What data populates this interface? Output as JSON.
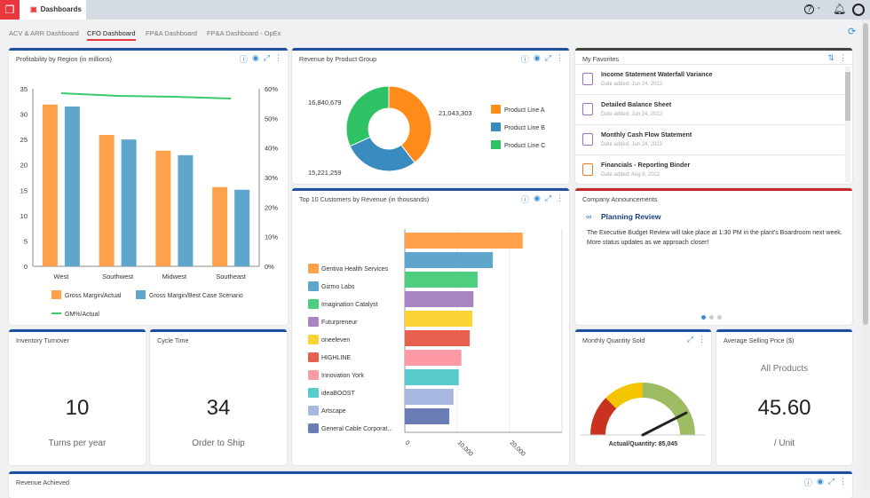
{
  "app": {
    "tab_label": "Dashboards",
    "help": "?",
    "help_caret": "⌄"
  },
  "subtabs": [
    "ACV & ARR Dashboard",
    "CFO Dashboard",
    "FP&A Dashboard",
    "FP&A Dashboard - OpEx"
  ],
  "panels": {
    "profit": {
      "title": "Profitability by Region (in millions)"
    },
    "revenue_group": {
      "title": "Revenue by Product Group"
    },
    "favorites": {
      "title": "My Favorites",
      "items": [
        {
          "title": "Income Statement Waterfall Variance",
          "date": "Date added: Jun 24, 2022"
        },
        {
          "title": "Detailed Balance Sheet",
          "date": "Date added: Jun 24, 2022"
        },
        {
          "title": "Monthly Cash Flow Statement",
          "date": "Date added: Jun 24, 2022"
        },
        {
          "title": "Financials - Reporting Binder",
          "date": "Date added: Aug 8, 2022"
        }
      ]
    },
    "top10": {
      "title": "Top 10 Customers by Revenue (in thousands)"
    },
    "announcements": {
      "title": "Company Announcements",
      "heading": "Planning Review",
      "body": "The Executive Budget Review will take place at 1:30 PM in the plant's Boardroom next week. More status updates as we approach closer!"
    },
    "inventory": {
      "title": "Inventory Turnover",
      "value": "10",
      "unit": "Turns per year"
    },
    "cycle": {
      "title": "Cycle Time",
      "value": "34",
      "unit": "Order to Ship"
    },
    "monthly": {
      "title": "Monthly Quantity Sold",
      "label": "Actual/Quantity: 85,045",
      "gauge_fraction": 0.85
    },
    "asp": {
      "title": "Average Selling Price ($)",
      "subtitle": "All Products",
      "value": "45.60",
      "unit": "/ Unit"
    },
    "revenue_achieved": {
      "title": "Revenue Achieved"
    }
  },
  "chart_data": [
    {
      "type": "bar",
      "title": "Profitability by Region (in millions)",
      "categories": [
        "West",
        "Southwest",
        "Midwest",
        "Southeast"
      ],
      "series": [
        {
          "name": "Gross Margin/Actual",
          "color": "#ffa04a",
          "values": [
            31.9,
            25.9,
            22.8,
            15.6
          ]
        },
        {
          "name": "Gross Margin/Best Case Scenario",
          "color": "#5fa6cc",
          "values": [
            31.5,
            25.0,
            21.9,
            15.1
          ]
        },
        {
          "name": "GM%/Actual",
          "type": "line",
          "axis": "right",
          "color": "#3cc96e",
          "values": [
            58.5,
            57.6,
            57.3,
            56.7
          ]
        }
      ],
      "ylim": [
        0,
        35
      ],
      "yticks": [
        "0",
        "5",
        "10",
        "15",
        "20",
        "25",
        "30",
        "35"
      ],
      "y2lim": [
        0,
        60
      ],
      "y2ticks": [
        "0%",
        "10%",
        "20%",
        "30%",
        "40%",
        "50%",
        "60%"
      ]
    },
    {
      "type": "pie",
      "title": "Revenue by Product Group",
      "labels": [
        "Product Line A",
        "Product Line B",
        "Product Line C"
      ],
      "values": [
        21043303,
        15221259,
        16840679
      ],
      "value_labels": [
        "21,043,303",
        "15,221,259",
        "16,840,679"
      ],
      "colors": [
        "#ff8c1a",
        "#3a8cc0",
        "#2ec265"
      ]
    },
    {
      "type": "bar",
      "orientation": "horizontal",
      "title": "Top 10 Customers by Revenue (in thousands)",
      "categories": [
        "Gentiva Health Services",
        "Gizmo Labs",
        "Imagination Catalyst",
        "Futurpreneur",
        "oneeleven",
        "HIGHLINE",
        "Innovation York",
        "ideaBOOST",
        "Artscape",
        "General Cable Corporat..."
      ],
      "values": [
        22500,
        16800,
        13900,
        13100,
        12900,
        12400,
        10800,
        10300,
        9300,
        8500
      ],
      "colors": [
        "#ffa04a",
        "#5fa6cc",
        "#4dcf7f",
        "#a884c0",
        "#fbd334",
        "#e8604f",
        "#ff99a5",
        "#58cccc",
        "#a9b8e0",
        "#6b7db5"
      ],
      "xlim": [
        0,
        30000
      ],
      "xticks": [
        "0",
        "10,000",
        "20,000"
      ]
    }
  ]
}
